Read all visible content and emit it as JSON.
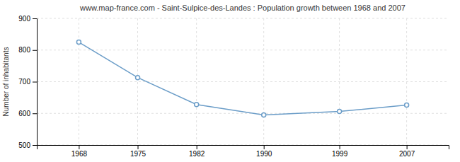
{
  "chart_data": {
    "type": "line",
    "title": "www.map-france.com - Saint-Sulpice-des-Landes : Population growth between 1968 and 2007",
    "y_label": "Number of inhabitants",
    "x": [
      1968,
      1975,
      1982,
      1990,
      1999,
      2007
    ],
    "values": [
      825,
      713,
      628,
      595,
      606,
      626
    ],
    "xlim": [
      1963,
      2012
    ],
    "xticks": [
      1968,
      1975,
      1982,
      1990,
      1999,
      2007
    ],
    "ylim": [
      500,
      900
    ],
    "yticks": [
      500,
      600,
      700,
      800,
      900
    ],
    "grid": true,
    "color": "#6b9dc8",
    "marker": "circle"
  }
}
